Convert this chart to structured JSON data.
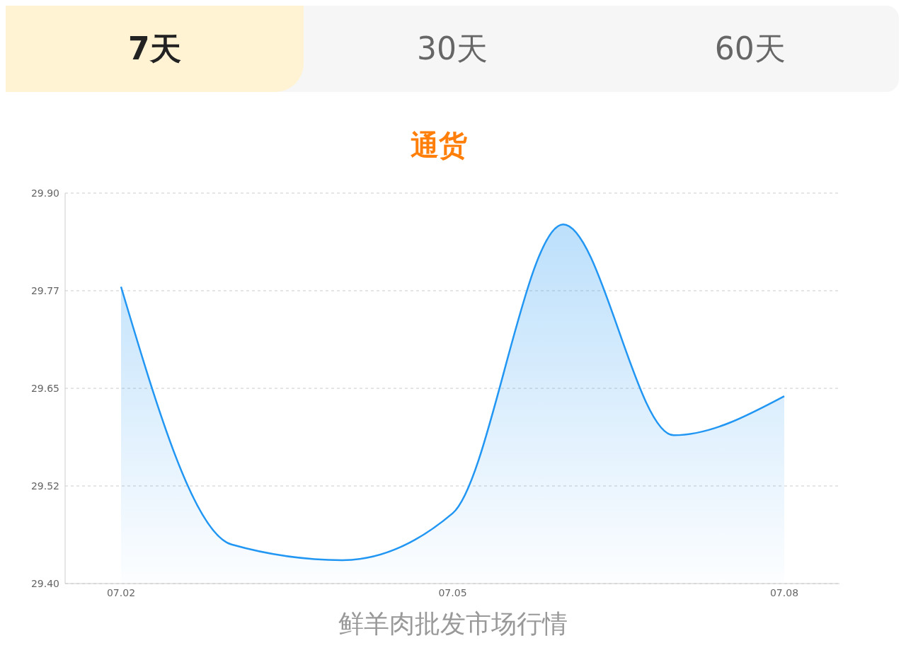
{
  "chart_data": {
    "type": "area",
    "title": "通货",
    "categories": [
      "07.02",
      null,
      null,
      "07.05",
      null,
      null,
      "07.08"
    ],
    "series": [
      {
        "color": "#2196f3",
        "values": [
          29.78,
          29.45,
          29.43,
          29.49,
          29.86,
          29.59,
          29.64
        ]
      }
    ],
    "ylim": [
      29.4,
      29.9
    ],
    "yticks": [
      {
        "value": 29.4,
        "label": "29.40"
      },
      {
        "value": 29.525,
        "label": "29.52"
      },
      29.65,
      {
        "value": 29.775,
        "label": "29.77"
      },
      {
        "value": 29.9,
        "label": "29.90"
      }
    ],
    "grid": "y",
    "legend": false,
    "marker": "none",
    "annotations": [
      "7天",
      "30天",
      "60天",
      "鲜羊肉批发市场行情"
    ]
  }
}
